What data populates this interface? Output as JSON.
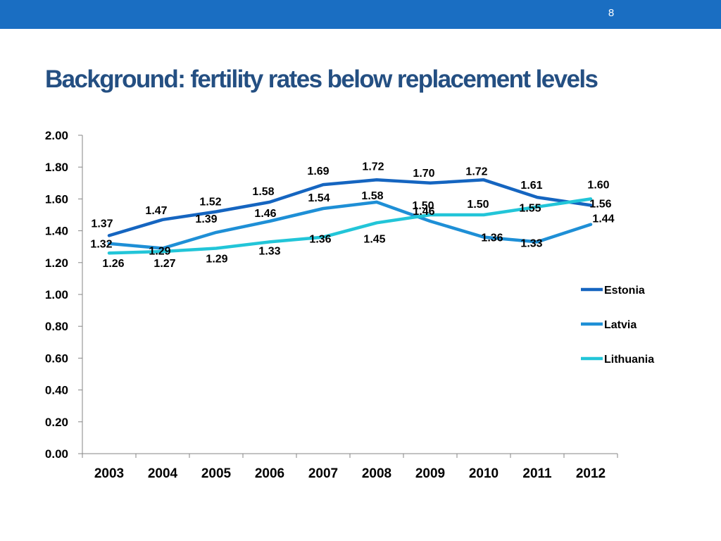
{
  "slide": {
    "number": "8",
    "title": "Background: fertility rates below replacement levels"
  },
  "colors": {
    "bar": "#1a6ec2",
    "title": "#244f82"
  },
  "chart_data": {
    "type": "line",
    "title": "",
    "xlabel": "",
    "ylabel": "",
    "categories": [
      "2003",
      "2004",
      "2005",
      "2006",
      "2007",
      "2008",
      "2009",
      "2010",
      "2011",
      "2012"
    ],
    "ylim": [
      0,
      2
    ],
    "yticks": [
      "0.00",
      "0.20",
      "0.40",
      "0.60",
      "0.80",
      "1.00",
      "1.20",
      "1.40",
      "1.60",
      "1.80",
      "2.00"
    ],
    "legend_position": "right",
    "grid": false,
    "series": [
      {
        "name": "Estonia",
        "color": "#1565c0",
        "values": [
          1.37,
          1.47,
          1.52,
          1.58,
          1.69,
          1.72,
          1.7,
          1.72,
          1.61,
          1.56
        ],
        "labels": [
          "1.37",
          "1.47",
          "1.52",
          "1.58",
          "1.69",
          "1.72",
          "1.70",
          "1.72",
          "1.61",
          "1.56"
        ]
      },
      {
        "name": "Latvia",
        "color": "#1e8fd6",
        "values": [
          1.32,
          1.29,
          1.39,
          1.46,
          1.54,
          1.58,
          1.46,
          1.36,
          1.33,
          1.44
        ],
        "labels": [
          "1.32",
          "1.29",
          "1.39",
          "1.46",
          "1.54",
          "1.58",
          "1.46",
          "1.36",
          "1.33",
          "1.44"
        ]
      },
      {
        "name": "Lithuania",
        "color": "#22c5d8",
        "values": [
          1.26,
          1.27,
          1.29,
          1.33,
          1.36,
          1.45,
          1.5,
          1.5,
          1.55,
          1.6
        ],
        "labels": [
          "1.26",
          "1.27",
          "1.29",
          "1.33",
          "1.36",
          "1.45",
          "1.50",
          "1.50",
          "1.55",
          "1.60"
        ]
      }
    ]
  }
}
